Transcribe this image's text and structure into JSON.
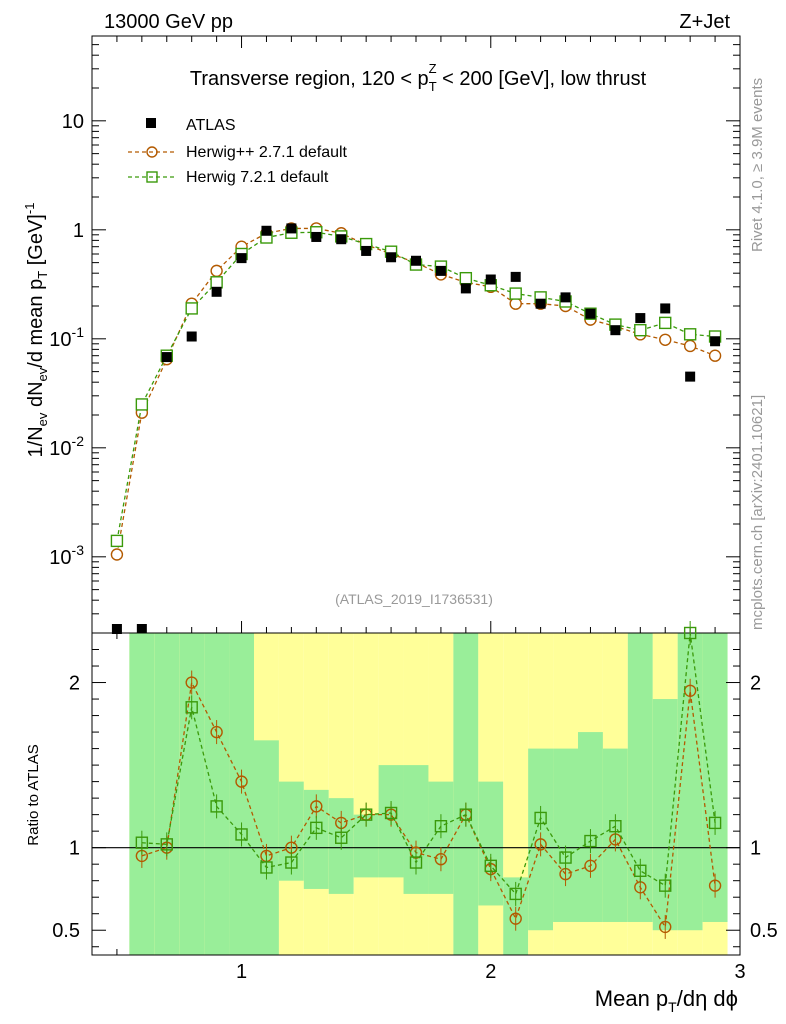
{
  "header": {
    "left": "13000 GeV pp",
    "right": "Z+Jet",
    "side_top": "Rivet 4.1.0, ≥ 3.9M events",
    "side_bottom": "mcplots.cern.ch [arXiv:2401.10621]",
    "analysis": "(ATLAS_2019_I1736531)"
  },
  "chart_data": [
    {
      "type": "scatter",
      "title": "Transverse region, 120 < p_T^Z < 200 [GeV], low thrust",
      "xlabel": "Mean p_T/dη dϕ",
      "ylabel": "1/N_ev dN_ev/d mean p_T [GeV]^-1",
      "yscale": "log",
      "xlim": [
        0.4,
        3.0
      ],
      "ylim": [
        0.0002,
        60
      ],
      "x_ticks": [
        "1",
        "2",
        "3"
      ],
      "y_ticks": [
        "10^-3",
        "10^-2",
        "10^-1",
        "1",
        "10"
      ],
      "x": [
        0.5,
        0.6,
        0.7,
        0.8,
        0.9,
        1.0,
        1.1,
        1.2,
        1.3,
        1.4,
        1.5,
        1.6,
        1.7,
        1.8,
        1.9,
        2.0,
        2.1,
        2.2,
        2.3,
        2.4,
        2.5,
        2.6,
        2.7,
        2.8,
        2.9
      ],
      "legend": [
        "ATLAS",
        "Herwig++ 2.7.1 default",
        "Herwig 7.2.1 default"
      ],
      "series": [
        {
          "name": "ATLAS",
          "color": "#000000",
          "marker": "square-filled",
          "values": [
            0.0002,
            0.0002,
            0.068,
            0.105,
            0.27,
            0.55,
            0.98,
            1.03,
            0.86,
            0.82,
            0.64,
            0.56,
            0.52,
            0.42,
            0.29,
            0.35,
            0.37,
            0.21,
            0.24,
            0.17,
            0.12,
            0.155,
            0.19,
            0.045,
            0.095
          ]
        },
        {
          "name": "Herwig++ 2.7.1 default",
          "color": "#b35a00",
          "marker": "circle-open",
          "values": [
            0.00105,
            0.021,
            0.065,
            0.21,
            0.42,
            0.7,
            0.93,
            1.03,
            1.03,
            0.93,
            0.73,
            0.6,
            0.5,
            0.39,
            0.33,
            0.3,
            0.21,
            0.21,
            0.2,
            0.15,
            0.13,
            0.11,
            0.098,
            0.086,
            0.07
          ]
        },
        {
          "name": "Herwig 7.2.1 default",
          "color": "#3a9a0a",
          "marker": "square-open",
          "values": [
            0.0014,
            0.025,
            0.07,
            0.19,
            0.33,
            0.6,
            0.85,
            0.94,
            0.95,
            0.87,
            0.74,
            0.63,
            0.48,
            0.46,
            0.36,
            0.31,
            0.26,
            0.24,
            0.22,
            0.17,
            0.135,
            0.12,
            0.14,
            0.11,
            0.105
          ]
        }
      ]
    },
    {
      "type": "scatter",
      "ylabel": "Ratio to ATLAS",
      "xlabel": "Mean p_T/dη dϕ",
      "ylim": [
        0.35,
        2.3
      ],
      "y_ticks": [
        "0.5",
        "1",
        "2"
      ],
      "x": [
        0.6,
        0.7,
        0.8,
        0.9,
        1.0,
        1.1,
        1.2,
        1.3,
        1.4,
        1.5,
        1.6,
        1.7,
        1.8,
        1.9,
        2.0,
        2.1,
        2.2,
        2.3,
        2.4,
        2.5,
        2.6,
        2.7,
        2.8,
        2.9
      ],
      "band_green": [
        [
          0.35,
          2.3
        ],
        [
          0.35,
          2.3
        ],
        [
          0.35,
          2.3
        ],
        [
          0.35,
          2.3
        ],
        [
          0.35,
          2.3
        ],
        [
          0.35,
          1.65
        ],
        [
          0.8,
          1.4
        ],
        [
          0.75,
          1.35
        ],
        [
          0.72,
          1.3
        ],
        [
          0.82,
          1.2
        ],
        [
          0.82,
          1.5
        ],
        [
          0.72,
          1.5
        ],
        [
          0.72,
          1.4
        ],
        [
          0.35,
          2.3
        ],
        [
          0.65,
          1.4
        ],
        [
          0.35,
          0.82
        ],
        [
          0.5,
          1.6
        ],
        [
          0.55,
          1.6
        ],
        [
          0.55,
          1.7
        ],
        [
          0.55,
          1.6
        ],
        [
          0.55,
          2.3
        ],
        [
          0.5,
          1.9
        ],
        [
          0.5,
          2.3
        ],
        [
          0.55,
          2.3
        ]
      ],
      "band_yellow": [
        [
          0.35,
          2.3
        ],
        [
          0.35,
          2.3
        ],
        [
          0.35,
          2.3
        ],
        [
          0.35,
          2.3
        ],
        [
          0.35,
          2.3
        ],
        [
          0.35,
          2.3
        ],
        [
          0.35,
          2.3
        ],
        [
          0.35,
          2.3
        ],
        [
          0.35,
          2.3
        ],
        [
          0.35,
          2.3
        ],
        [
          0.35,
          2.3
        ],
        [
          0.35,
          2.3
        ],
        [
          0.35,
          2.3
        ],
        [
          0.35,
          2.3
        ],
        [
          0.35,
          2.3
        ],
        [
          0.35,
          2.3
        ],
        [
          0.35,
          2.3
        ],
        [
          0.35,
          2.3
        ],
        [
          0.35,
          2.3
        ],
        [
          0.35,
          2.3
        ],
        [
          0.35,
          2.3
        ],
        [
          0.35,
          2.3
        ],
        [
          0.35,
          2.3
        ],
        [
          0.35,
          2.3
        ]
      ],
      "series": [
        {
          "name": "Herwig++ 2.7.1 default",
          "color": "#b35a00",
          "values": [
            0.95,
            1.0,
            2.0,
            1.7,
            1.4,
            0.95,
            1.0,
            1.25,
            1.15,
            1.2,
            1.2,
            0.97,
            0.93,
            1.2,
            0.87,
            0.57,
            1.02,
            0.84,
            0.89,
            1.05,
            0.76,
            0.52,
            1.95,
            0.77
          ]
        },
        {
          "name": "Herwig 7.2.1 default",
          "color": "#3a9a0a",
          "values": [
            1.03,
            1.02,
            1.85,
            1.25,
            1.08,
            0.88,
            0.91,
            1.12,
            1.06,
            1.2,
            1.21,
            0.91,
            1.13,
            1.2,
            0.89,
            0.72,
            1.18,
            0.94,
            1.04,
            1.13,
            0.86,
            0.77,
            2.3,
            1.15
          ]
        }
      ]
    }
  ]
}
